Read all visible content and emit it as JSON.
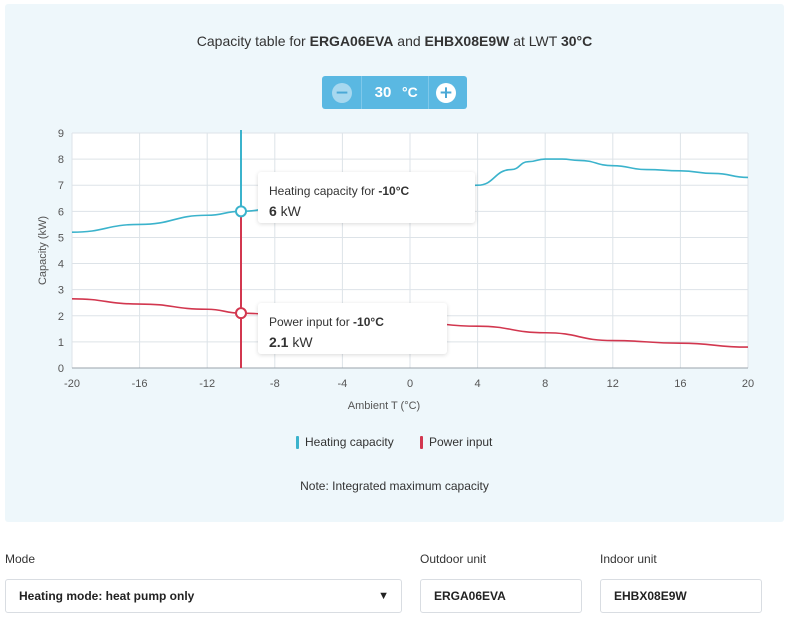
{
  "title": {
    "prefix": "Capacity table for ",
    "outdoor": "ERGA06EVA",
    "middle": " and ",
    "indoor": "EHBX08E9W",
    "suffix": " at LWT ",
    "lwt": "30°C"
  },
  "stepper": {
    "minus_icon": "−",
    "value": "30",
    "unit": "°C",
    "plus_icon": "+"
  },
  "tooltips": {
    "heating": {
      "label_prefix": "Heating capacity for ",
      "label_temp": "-10°C",
      "value": "6",
      "unit": " kW"
    },
    "power": {
      "label_prefix": "Power input for ",
      "label_temp": "-10°C",
      "value": "2.1",
      "unit": " kW"
    }
  },
  "legend": {
    "heating": "Heating capacity",
    "power": "Power input"
  },
  "note": "Note: Integrated maximum capacity",
  "form": {
    "mode_label": "Mode",
    "mode_value": "Heating mode: heat pump only",
    "outdoor_label": "Outdoor unit",
    "outdoor_value": "ERGA06EVA",
    "indoor_label": "Indoor unit",
    "indoor_value": "EHBX08E9W"
  },
  "colors": {
    "heating": "#3bb3cc",
    "power": "#d2374f",
    "accent": "#5ab8e2"
  },
  "chart_data": {
    "type": "line",
    "xlabel": "Ambient T (°C)",
    "ylabel": "Capacity (kW)",
    "xlim": [
      -20,
      20
    ],
    "ylim": [
      0,
      9
    ],
    "xticks": [
      -20,
      -16,
      -12,
      -8,
      -4,
      0,
      4,
      8,
      12,
      16,
      20
    ],
    "yticks": [
      0,
      1,
      2,
      3,
      4,
      5,
      6,
      7,
      8,
      9
    ],
    "grid": true,
    "legend_position": "bottom",
    "cursor_x": -10,
    "series": [
      {
        "name": "Heating capacity",
        "color": "#3bb3cc",
        "x": [
          -20,
          -16,
          -12,
          -10,
          -7,
          -4,
          0,
          2,
          4,
          6,
          7,
          8,
          9,
          10,
          12,
          14,
          16,
          18,
          20
        ],
        "y": [
          5.2,
          5.5,
          5.85,
          6.0,
          6.25,
          6.5,
          6.7,
          6.8,
          7.0,
          7.6,
          7.9,
          8.0,
          8.0,
          7.95,
          7.75,
          7.6,
          7.55,
          7.45,
          7.3
        ]
      },
      {
        "name": "Power input",
        "color": "#d2374f",
        "x": [
          -20,
          -16,
          -12,
          -10,
          -7,
          -4,
          0,
          4,
          8,
          12,
          16,
          20
        ],
        "y": [
          2.65,
          2.45,
          2.25,
          2.1,
          2.0,
          1.9,
          1.75,
          1.6,
          1.35,
          1.05,
          0.95,
          0.8
        ]
      }
    ],
    "highlight_points": [
      {
        "series": "Heating capacity",
        "x": -10,
        "y": 6
      },
      {
        "series": "Power input",
        "x": -10,
        "y": 2.1
      }
    ]
  }
}
